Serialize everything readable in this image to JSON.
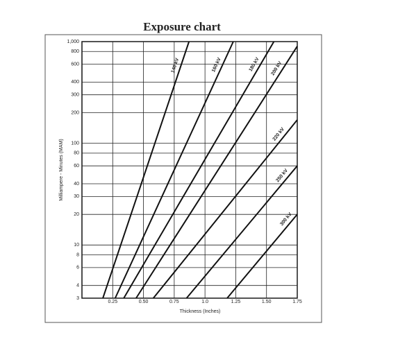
{
  "chart_data": {
    "type": "line",
    "title": "Exposure chart",
    "x_label": "Thickness (Inches)",
    "y_label": "Milliampere - Minutes (MAM)",
    "log_y": true,
    "grid": true,
    "color": "#111111",
    "xlim": [
      0,
      1.75
    ],
    "xticks": [
      0.25,
      {
        "value": 0.5,
        "label": "0.50"
      },
      0.75,
      {
        "value": 1,
        "label": "1.0"
      },
      1.25,
      {
        "value": 1.5,
        "label": "1.50"
      },
      1.75
    ],
    "ylim": [
      3,
      1000
    ],
    "yticks": [
      3,
      4,
      6,
      8,
      10,
      20,
      30,
      40,
      60,
      80,
      100,
      200,
      300,
      400,
      600,
      800,
      {
        "value": 1000,
        "label": "1,000"
      }
    ],
    "series": [
      {
        "name": "140 kV",
        "x": [
          0.17,
          0.87
        ],
        "values": [
          3,
          1000
        ]
      },
      {
        "name": "160 kV",
        "x": [
          0.27,
          1.23
        ],
        "values": [
          3,
          1000
        ]
      },
      {
        "name": "180 kV",
        "x": [
          0.34,
          1.56
        ],
        "values": [
          3,
          1000
        ]
      },
      {
        "name": "200 kV",
        "x": [
          0.44,
          1.75
        ],
        "values": [
          3,
          900
        ]
      },
      {
        "name": "220 kV",
        "x": [
          0.58,
          1.75
        ],
        "values": [
          3,
          170
        ]
      },
      {
        "name": "250 kV",
        "x": [
          0.85,
          1.75
        ],
        "values": [
          3,
          60
        ]
      },
      {
        "name": "300 kV",
        "x": [
          1.18,
          1.75
        ],
        "values": [
          3,
          20
        ]
      }
    ]
  }
}
